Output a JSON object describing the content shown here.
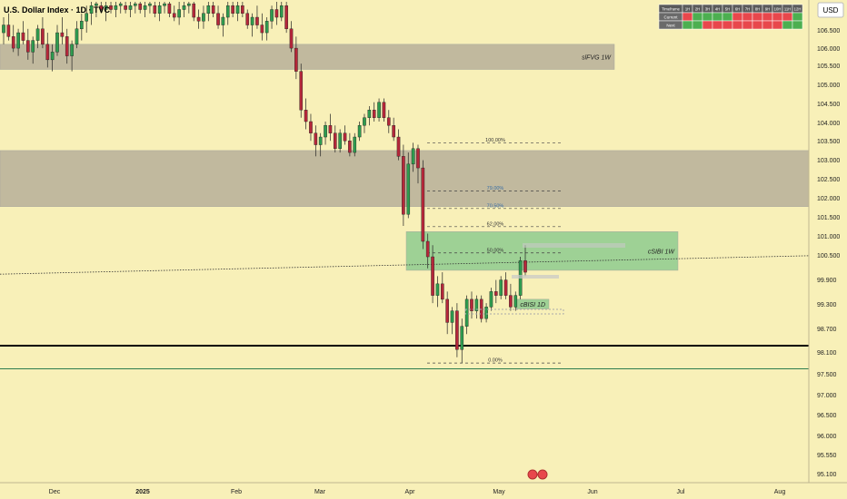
{
  "header": {
    "symbol_title": "U.S. Dollar Index · 1D · TVC",
    "currency_badge": "USD"
  },
  "timeframe_table": {
    "header": [
      "Timeframe",
      "1H",
      "2H",
      "3H",
      "4H",
      "5H",
      "6H",
      "7H",
      "8H",
      "9H",
      "10H",
      "11H",
      "12H"
    ],
    "rows": [
      {
        "label": "Current",
        "cells": [
          "red",
          "green",
          "green",
          "green",
          "green",
          "red",
          "red",
          "red",
          "red",
          "red",
          "red",
          "green"
        ]
      },
      {
        "label": "Next",
        "cells": [
          "green",
          "green",
          "red",
          "red",
          "red",
          "red",
          "red",
          "red",
          "red",
          "red",
          "green",
          "green"
        ]
      }
    ],
    "colors": {
      "green": "#4caf50",
      "red": "#e8474c",
      "header_bg": "#5a5a5a",
      "label_bg": "#6a6a6a"
    }
  },
  "zones": [
    {
      "label": "slFVG 1W",
      "y_top": 106.1,
      "y_bottom": 105.45,
      "color": "#b8b09a"
    },
    {
      "label": "",
      "y_top": 103.35,
      "y_bottom": 101.9,
      "color": "#b8b09a"
    },
    {
      "label": "cSIBI 1W",
      "y_top": 101.25,
      "y_bottom": 100.25,
      "color": "#8fcc8f"
    },
    {
      "label": "cBISI 1D",
      "y_top": 99.5,
      "y_bottom": 99.25,
      "color": "#8fcc8f"
    }
  ],
  "fib_levels": [
    {
      "label": "100.00%",
      "value": 103.55
    },
    {
      "label": "79.00%",
      "value": 102.3
    },
    {
      "label": "70.50%",
      "value": 101.85
    },
    {
      "label": "62.00%",
      "value": 101.38
    },
    {
      "label": "50.00%",
      "value": 100.7
    },
    {
      "label": "0.00%",
      "value": 97.85
    }
  ],
  "price_axis": {
    "ticks": [
      "106.500",
      "106.000",
      "105.500",
      "105.000",
      "104.500",
      "104.000",
      "103.500",
      "103.000",
      "102.500",
      "102.000",
      "101.500",
      "101.000",
      "100.500",
      "99.900",
      "99.300",
      "98.700",
      "98.100",
      "97.500",
      "97.000",
      "96.500",
      "96.000",
      "95.550",
      "95.100"
    ]
  },
  "time_axis": {
    "ticks": [
      "Dec",
      "2025",
      "Feb",
      "Mar",
      "Apr",
      "May",
      "Jun",
      "Jul",
      "Aug"
    ]
  },
  "chart_data": {
    "type": "candlestick",
    "title": "U.S. Dollar Index · 1D · TVC",
    "ylim": [
      94.8,
      107.2
    ],
    "horizontal_lines": [
      {
        "value": 98.3,
        "color": "#000000",
        "style": "solid-thick"
      },
      {
        "value": 97.7,
        "color": "#2e7d4f",
        "style": "solid"
      }
    ],
    "trendline": {
      "style": "dotted",
      "color": "#333333",
      "from_value": 100.15,
      "to_value": 100.65
    },
    "candles": [
      {
        "o": 106.4,
        "h": 106.8,
        "l": 106.1,
        "c": 106.6
      },
      {
        "o": 106.6,
        "h": 106.9,
        "l": 106.2,
        "c": 106.3
      },
      {
        "o": 106.3,
        "h": 106.6,
        "l": 105.9,
        "c": 106.0
      },
      {
        "o": 106.0,
        "h": 106.5,
        "l": 105.8,
        "c": 106.4
      },
      {
        "o": 106.4,
        "h": 106.7,
        "l": 106.1,
        "c": 106.2
      },
      {
        "o": 106.2,
        "h": 106.5,
        "l": 105.7,
        "c": 105.9
      },
      {
        "o": 105.9,
        "h": 106.3,
        "l": 105.6,
        "c": 106.2
      },
      {
        "o": 106.2,
        "h": 106.6,
        "l": 106.0,
        "c": 106.5
      },
      {
        "o": 106.5,
        "h": 106.8,
        "l": 106.0,
        "c": 106.1
      },
      {
        "o": 106.1,
        "h": 106.4,
        "l": 105.5,
        "c": 105.7
      },
      {
        "o": 105.7,
        "h": 106.1,
        "l": 105.4,
        "c": 105.9
      },
      {
        "o": 105.9,
        "h": 106.6,
        "l": 105.8,
        "c": 106.4
      },
      {
        "o": 106.4,
        "h": 106.8,
        "l": 106.1,
        "c": 106.3
      },
      {
        "o": 106.3,
        "h": 106.5,
        "l": 105.6,
        "c": 105.8
      },
      {
        "o": 105.8,
        "h": 106.2,
        "l": 105.4,
        "c": 106.1
      },
      {
        "o": 106.1,
        "h": 106.7,
        "l": 106.0,
        "c": 106.5
      },
      {
        "o": 106.5,
        "h": 106.9,
        "l": 106.2,
        "c": 106.7
      },
      {
        "o": 106.7,
        "h": 107.1,
        "l": 106.4,
        "c": 106.9
      },
      {
        "o": 106.9,
        "h": 107.2,
        "l": 106.6,
        "c": 107.1
      },
      {
        "o": 107.1,
        "h": 107.2,
        "l": 106.8,
        "c": 107.15
      },
      {
        "o": 107.1,
        "h": 107.2,
        "l": 106.9,
        "c": 107.0
      },
      {
        "o": 107.0,
        "h": 107.2,
        "l": 106.7,
        "c": 107.1
      },
      {
        "o": 107.1,
        "h": 107.2,
        "l": 106.9,
        "c": 107.0
      },
      {
        "o": 107.0,
        "h": 107.2,
        "l": 106.8,
        "c": 107.1
      },
      {
        "o": 107.1,
        "h": 107.2,
        "l": 106.9,
        "c": 107.15
      },
      {
        "o": 107.1,
        "h": 107.2,
        "l": 106.9,
        "c": 107.0
      },
      {
        "o": 107.0,
        "h": 107.2,
        "l": 106.8,
        "c": 107.1
      },
      {
        "o": 107.1,
        "h": 107.2,
        "l": 106.9,
        "c": 107.15
      },
      {
        "o": 107.15,
        "h": 107.2,
        "l": 106.9,
        "c": 107.0
      },
      {
        "o": 107.0,
        "h": 107.2,
        "l": 106.8,
        "c": 107.1
      },
      {
        "o": 107.1,
        "h": 107.2,
        "l": 106.9,
        "c": 107.15
      },
      {
        "o": 107.1,
        "h": 107.2,
        "l": 106.8,
        "c": 106.9
      },
      {
        "o": 106.9,
        "h": 107.2,
        "l": 106.7,
        "c": 107.1
      },
      {
        "o": 107.1,
        "h": 107.2,
        "l": 106.9,
        "c": 107.15
      },
      {
        "o": 107.15,
        "h": 107.2,
        "l": 106.8,
        "c": 106.9
      },
      {
        "o": 106.9,
        "h": 107.1,
        "l": 106.7,
        "c": 106.8
      },
      {
        "o": 106.8,
        "h": 107.2,
        "l": 106.6,
        "c": 107.0
      },
      {
        "o": 107.0,
        "h": 107.2,
        "l": 106.8,
        "c": 107.1
      },
      {
        "o": 107.1,
        "h": 107.2,
        "l": 106.9,
        "c": 107.15
      },
      {
        "o": 107.15,
        "h": 107.2,
        "l": 106.7,
        "c": 106.8
      },
      {
        "o": 106.8,
        "h": 107.0,
        "l": 106.5,
        "c": 106.7
      },
      {
        "o": 106.7,
        "h": 107.1,
        "l": 106.5,
        "c": 106.9
      },
      {
        "o": 106.9,
        "h": 107.2,
        "l": 106.7,
        "c": 107.1
      },
      {
        "o": 107.1,
        "h": 107.2,
        "l": 106.8,
        "c": 106.9
      },
      {
        "o": 106.9,
        "h": 107.1,
        "l": 106.5,
        "c": 106.6
      },
      {
        "o": 106.6,
        "h": 106.9,
        "l": 106.3,
        "c": 106.8
      },
      {
        "o": 106.8,
        "h": 107.2,
        "l": 106.6,
        "c": 107.1
      },
      {
        "o": 107.1,
        "h": 107.2,
        "l": 106.8,
        "c": 106.9
      },
      {
        "o": 106.9,
        "h": 107.2,
        "l": 106.7,
        "c": 107.1
      },
      {
        "o": 107.1,
        "h": 107.2,
        "l": 106.8,
        "c": 106.9
      },
      {
        "o": 106.9,
        "h": 107.0,
        "l": 106.5,
        "c": 106.6
      },
      {
        "o": 106.6,
        "h": 106.9,
        "l": 106.3,
        "c": 106.8
      },
      {
        "o": 106.8,
        "h": 107.1,
        "l": 106.5,
        "c": 106.6
      },
      {
        "o": 106.6,
        "h": 106.9,
        "l": 106.2,
        "c": 106.4
      },
      {
        "o": 106.4,
        "h": 106.8,
        "l": 106.2,
        "c": 106.7
      },
      {
        "o": 106.7,
        "h": 107.1,
        "l": 106.5,
        "c": 107.0
      },
      {
        "o": 107.0,
        "h": 107.2,
        "l": 106.6,
        "c": 106.8
      },
      {
        "o": 106.8,
        "h": 107.2,
        "l": 106.7,
        "c": 107.1
      },
      {
        "o": 107.1,
        "h": 107.2,
        "l": 106.4,
        "c": 106.5
      },
      {
        "o": 106.5,
        "h": 106.7,
        "l": 105.9,
        "c": 106.0
      },
      {
        "o": 106.0,
        "h": 106.3,
        "l": 105.2,
        "c": 105.4
      },
      {
        "o": 105.4,
        "h": 105.6,
        "l": 104.2,
        "c": 104.4
      },
      {
        "o": 104.4,
        "h": 104.7,
        "l": 103.9,
        "c": 104.1
      },
      {
        "o": 104.1,
        "h": 104.3,
        "l": 103.6,
        "c": 103.8
      },
      {
        "o": 103.8,
        "h": 104.0,
        "l": 103.2,
        "c": 103.5
      },
      {
        "o": 103.5,
        "h": 103.8,
        "l": 103.2,
        "c": 103.7
      },
      {
        "o": 103.7,
        "h": 104.1,
        "l": 103.5,
        "c": 104.0
      },
      {
        "o": 104.0,
        "h": 104.3,
        "l": 103.6,
        "c": 103.8
      },
      {
        "o": 103.8,
        "h": 104.0,
        "l": 103.3,
        "c": 103.4
      },
      {
        "o": 103.4,
        "h": 103.9,
        "l": 103.3,
        "c": 103.8
      },
      {
        "o": 103.8,
        "h": 104.0,
        "l": 103.5,
        "c": 103.6
      },
      {
        "o": 103.6,
        "h": 103.8,
        "l": 103.2,
        "c": 103.3
      },
      {
        "o": 103.3,
        "h": 103.8,
        "l": 103.2,
        "c": 103.7
      },
      {
        "o": 103.7,
        "h": 104.1,
        "l": 103.6,
        "c": 104.0
      },
      {
        "o": 104.0,
        "h": 104.3,
        "l": 103.8,
        "c": 104.2
      },
      {
        "o": 104.2,
        "h": 104.5,
        "l": 104.0,
        "c": 104.4
      },
      {
        "o": 104.4,
        "h": 104.6,
        "l": 104.1,
        "c": 104.2
      },
      {
        "o": 104.2,
        "h": 104.7,
        "l": 104.1,
        "c": 104.6
      },
      {
        "o": 104.6,
        "h": 104.7,
        "l": 104.1,
        "c": 104.2
      },
      {
        "o": 104.2,
        "h": 104.4,
        "l": 103.8,
        "c": 104.0
      },
      {
        "o": 104.0,
        "h": 104.2,
        "l": 103.6,
        "c": 103.7
      },
      {
        "o": 103.7,
        "h": 103.9,
        "l": 103.1,
        "c": 103.2
      },
      {
        "o": 103.2,
        "h": 103.5,
        "l": 101.4,
        "c": 101.7
      },
      {
        "o": 101.7,
        "h": 103.3,
        "l": 101.6,
        "c": 103.0
      },
      {
        "o": 103.0,
        "h": 103.55,
        "l": 102.8,
        "c": 103.4
      },
      {
        "o": 103.4,
        "h": 103.5,
        "l": 102.5,
        "c": 102.9
      },
      {
        "o": 102.9,
        "h": 103.1,
        "l": 100.8,
        "c": 101.0
      },
      {
        "o": 101.0,
        "h": 101.2,
        "l": 100.3,
        "c": 100.6
      },
      {
        "o": 100.6,
        "h": 100.9,
        "l": 99.4,
        "c": 99.6
      },
      {
        "o": 99.6,
        "h": 100.1,
        "l": 99.3,
        "c": 99.9
      },
      {
        "o": 99.9,
        "h": 100.2,
        "l": 99.4,
        "c": 99.5
      },
      {
        "o": 99.5,
        "h": 99.7,
        "l": 98.6,
        "c": 98.9
      },
      {
        "o": 98.9,
        "h": 99.3,
        "l": 98.6,
        "c": 99.2
      },
      {
        "o": 99.2,
        "h": 99.4,
        "l": 98.0,
        "c": 98.2
      },
      {
        "o": 98.2,
        "h": 99.0,
        "l": 97.85,
        "c": 98.8
      },
      {
        "o": 98.8,
        "h": 99.6,
        "l": 98.6,
        "c": 99.5
      },
      {
        "o": 99.5,
        "h": 99.7,
        "l": 99.0,
        "c": 99.2
      },
      {
        "o": 99.2,
        "h": 99.6,
        "l": 99.0,
        "c": 99.5
      },
      {
        "o": 99.5,
        "h": 99.6,
        "l": 98.9,
        "c": 99.0
      },
      {
        "o": 99.0,
        "h": 99.4,
        "l": 98.9,
        "c": 99.3
      },
      {
        "o": 99.3,
        "h": 99.8,
        "l": 99.2,
        "c": 99.7
      },
      {
        "o": 99.7,
        "h": 100.0,
        "l": 99.4,
        "c": 99.6
      },
      {
        "o": 99.6,
        "h": 100.1,
        "l": 99.5,
        "c": 100.0
      },
      {
        "o": 100.0,
        "h": 100.2,
        "l": 99.5,
        "c": 99.6
      },
      {
        "o": 99.6,
        "h": 99.9,
        "l": 99.2,
        "c": 99.3
      },
      {
        "o": 99.3,
        "h": 99.7,
        "l": 99.2,
        "c": 99.6
      },
      {
        "o": 99.6,
        "h": 100.6,
        "l": 99.5,
        "c": 100.5
      },
      {
        "o": 100.5,
        "h": 100.9,
        "l": 100.1,
        "c": 100.2
      }
    ]
  }
}
